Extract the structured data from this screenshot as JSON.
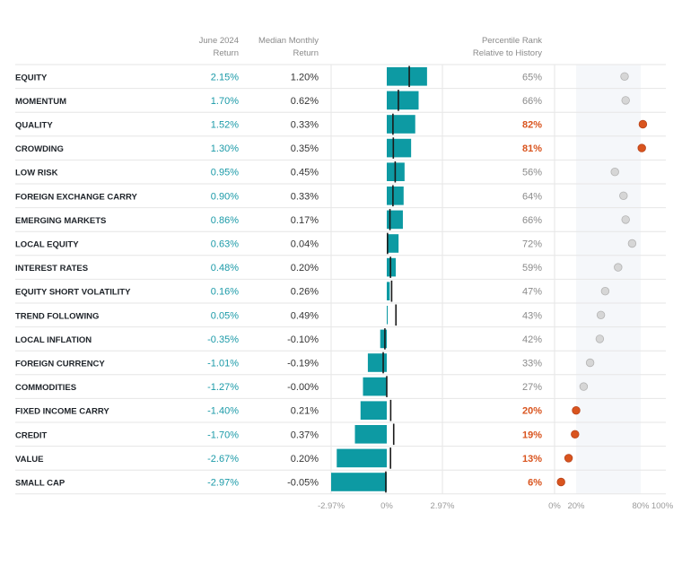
{
  "chart_data": {
    "type": "table",
    "headers": {
      "june_line1": "June 2024",
      "june_line2": "Return",
      "median_line1": "Median Monthly",
      "median_line2": "Return",
      "rank_line1": "Percentile Rank",
      "rank_line2": "Relative to History"
    },
    "bar_axis": {
      "min": -2.97,
      "max": 2.97,
      "ticks": [
        {
          "value": -2.97,
          "label": "-2.97%"
        },
        {
          "value": 0,
          "label": "0%"
        },
        {
          "value": 2.97,
          "label": "2.97%"
        }
      ]
    },
    "rank_axis": {
      "min": 0,
      "max": 100,
      "band": [
        20,
        80
      ],
      "ticks": [
        {
          "value": 0,
          "label": "0%"
        },
        {
          "value": 20,
          "label": "20%"
        },
        {
          "value": 80,
          "label": "80%"
        },
        {
          "value": 100,
          "label": "100%"
        }
      ]
    },
    "rows": [
      {
        "name": "EQUITY",
        "june": 2.15,
        "june_label": "2.15%",
        "median": 1.2,
        "median_label": "1.20%",
        "rank": 65,
        "rank_label": "65%"
      },
      {
        "name": "MOMENTUM",
        "june": 1.7,
        "june_label": "1.70%",
        "median": 0.62,
        "median_label": "0.62%",
        "rank": 66,
        "rank_label": "66%"
      },
      {
        "name": "QUALITY",
        "june": 1.52,
        "june_label": "1.52%",
        "median": 0.33,
        "median_label": "0.33%",
        "rank": 82,
        "rank_label": "82%"
      },
      {
        "name": "CROWDING",
        "june": 1.3,
        "june_label": "1.30%",
        "median": 0.35,
        "median_label": "0.35%",
        "rank": 81,
        "rank_label": "81%"
      },
      {
        "name": "LOW RISK",
        "june": 0.95,
        "june_label": "0.95%",
        "median": 0.45,
        "median_label": "0.45%",
        "rank": 56,
        "rank_label": "56%"
      },
      {
        "name": "FOREIGN EXCHANGE CARRY",
        "june": 0.9,
        "june_label": "0.90%",
        "median": 0.33,
        "median_label": "0.33%",
        "rank": 64,
        "rank_label": "64%"
      },
      {
        "name": "EMERGING MARKETS",
        "june": 0.86,
        "june_label": "0.86%",
        "median": 0.17,
        "median_label": "0.17%",
        "rank": 66,
        "rank_label": "66%"
      },
      {
        "name": "LOCAL EQUITY",
        "june": 0.63,
        "june_label": "0.63%",
        "median": 0.04,
        "median_label": "0.04%",
        "rank": 72,
        "rank_label": "72%"
      },
      {
        "name": "INTEREST RATES",
        "june": 0.48,
        "june_label": "0.48%",
        "median": 0.2,
        "median_label": "0.20%",
        "rank": 59,
        "rank_label": "59%"
      },
      {
        "name": "EQUITY SHORT VOLATILITY",
        "june": 0.16,
        "june_label": "0.16%",
        "median": 0.26,
        "median_label": "0.26%",
        "rank": 47,
        "rank_label": "47%"
      },
      {
        "name": "TREND FOLLOWING",
        "june": 0.05,
        "june_label": "0.05%",
        "median": 0.49,
        "median_label": "0.49%",
        "rank": 43,
        "rank_label": "43%"
      },
      {
        "name": "LOCAL INFLATION",
        "june": -0.35,
        "june_label": "-0.35%",
        "median": -0.1,
        "median_label": "-0.10%",
        "rank": 42,
        "rank_label": "42%"
      },
      {
        "name": "FOREIGN CURRENCY",
        "june": -1.01,
        "june_label": "-1.01%",
        "median": -0.19,
        "median_label": "-0.19%",
        "rank": 33,
        "rank_label": "33%"
      },
      {
        "name": "COMMODITIES",
        "june": -1.27,
        "june_label": "-1.27%",
        "median": -0.0,
        "median_label": "-0.00%",
        "rank": 27,
        "rank_label": "27%"
      },
      {
        "name": "FIXED INCOME CARRY",
        "june": -1.4,
        "june_label": "-1.40%",
        "median": 0.21,
        "median_label": "0.21%",
        "rank": 20,
        "rank_label": "20%"
      },
      {
        "name": "CREDIT",
        "june": -1.7,
        "june_label": "-1.70%",
        "median": 0.37,
        "median_label": "0.37%",
        "rank": 19,
        "rank_label": "19%"
      },
      {
        "name": "VALUE",
        "june": -2.67,
        "june_label": "-2.67%",
        "median": 0.2,
        "median_label": "0.20%",
        "rank": 13,
        "rank_label": "13%"
      },
      {
        "name": "SMALL CAP",
        "june": -2.97,
        "june_label": "-2.97%",
        "median": -0.05,
        "median_label": "-0.05%",
        "rank": 6,
        "rank_label": "6%"
      }
    ]
  },
  "colors": {
    "teal": "#0d9aa3",
    "return_text": "#1b9aa8",
    "extreme": "#d9541e",
    "normal_dot": "#d6d6d6",
    "normal_dot_stroke": "#b3b3b3",
    "band": "#f5f7fa",
    "row_divider": "#e6e6e6",
    "header_text": "#8a8a8a",
    "label_text": "#1e2329",
    "median_text": "#333333",
    "rank_text": "#8a8a8a",
    "axis_text": "#9a9a9a"
  }
}
